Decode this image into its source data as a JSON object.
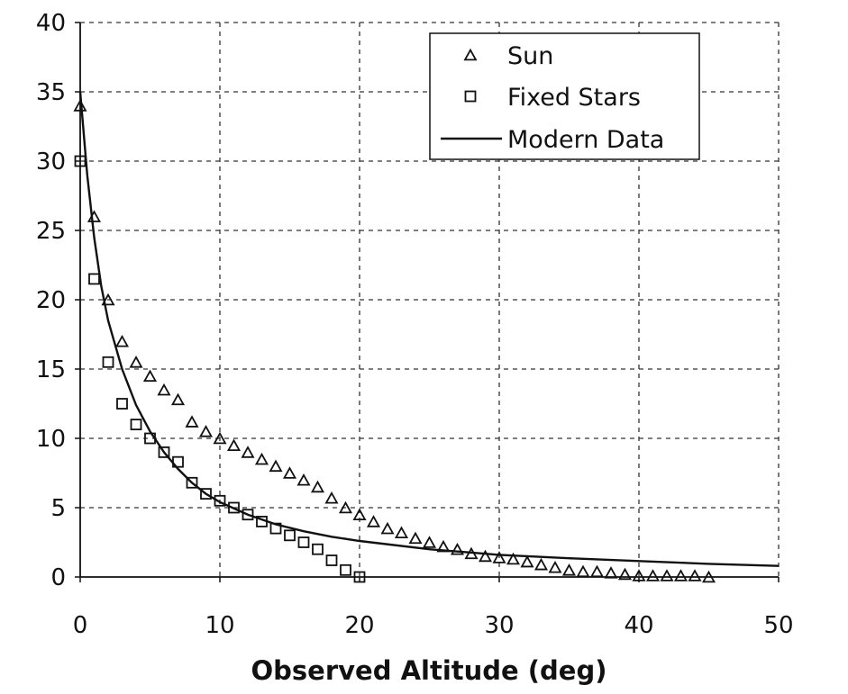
{
  "chart_data": {
    "type": "scatter",
    "title": "",
    "xlabel": "Observed Altitude (deg)",
    "ylabel": "",
    "xlim": [
      0,
      50
    ],
    "ylim": [
      0,
      40
    ],
    "xticks": [
      "0",
      "10",
      "20",
      "30",
      "40",
      "50"
    ],
    "yticks": [
      "0",
      "5",
      "10",
      "15",
      "20",
      "25",
      "30",
      "35",
      "40"
    ],
    "grid": true,
    "legend_position": "top-right",
    "series": [
      {
        "name": "Sun",
        "marker": "triangle",
        "x": [
          0,
          1,
          2,
          3,
          4,
          5,
          6,
          7,
          8,
          9,
          10,
          11,
          12,
          13,
          14,
          15,
          16,
          17,
          18,
          19,
          20,
          21,
          22,
          23,
          24,
          25,
          26,
          27,
          28,
          29,
          30,
          31,
          32,
          33,
          34,
          35,
          36,
          37,
          38,
          39,
          40,
          41,
          42,
          43,
          44,
          45
        ],
        "y": [
          34,
          26,
          20,
          17,
          15.5,
          14.5,
          13.5,
          12.8,
          11.2,
          10.5,
          10,
          9.5,
          9,
          8.5,
          8,
          7.5,
          7,
          6.5,
          5.7,
          5,
          4.5,
          4,
          3.5,
          3.2,
          2.8,
          2.5,
          2.2,
          2,
          1.7,
          1.5,
          1.4,
          1.3,
          1.1,
          0.9,
          0.7,
          0.5,
          0.4,
          0.4,
          0.3,
          0.2,
          0.1,
          0.1,
          0.1,
          0.1,
          0.1,
          0
        ]
      },
      {
        "name": "Fixed Stars",
        "marker": "square",
        "x": [
          0,
          1,
          2,
          3,
          4,
          5,
          6,
          7,
          8,
          9,
          10,
          11,
          12,
          13,
          14,
          15,
          16,
          17,
          18,
          19,
          20
        ],
        "y": [
          30,
          21.5,
          15.5,
          12.5,
          11,
          10,
          9,
          8.3,
          6.8,
          6,
          5.5,
          5,
          4.5,
          4,
          3.5,
          3,
          2.5,
          2,
          1.2,
          0.5,
          0
        ]
      },
      {
        "name": "Modern Data",
        "marker": "line",
        "x": [
          0,
          0.5,
          1,
          1.5,
          2,
          3,
          4,
          5,
          6,
          7,
          8,
          9,
          10,
          12,
          14,
          16,
          18,
          20,
          25,
          30,
          35,
          40,
          45,
          50
        ],
        "y": [
          35,
          29,
          24.5,
          21,
          18.5,
          15,
          12.4,
          10.5,
          9,
          7.8,
          6.8,
          6,
          5.4,
          4.5,
          3.8,
          3.3,
          2.9,
          2.6,
          2,
          1.6,
          1.35,
          1.15,
          0.95,
          0.8
        ]
      }
    ]
  }
}
